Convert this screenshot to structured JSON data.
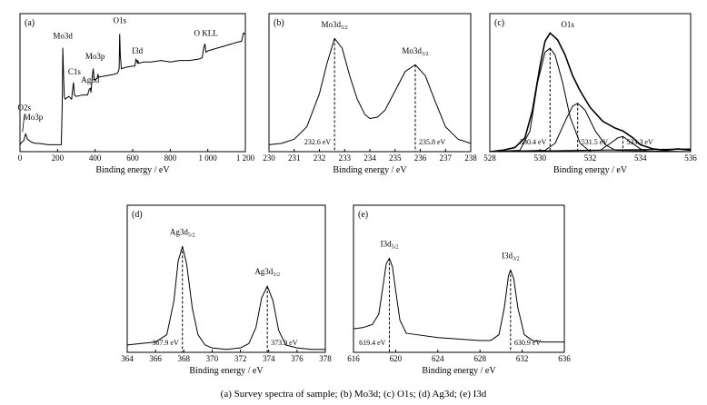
{
  "caption": {
    "text": "(a) Survey spectra of sample; (b) Mo3d; (c) O1s; (d) Ag3d; (e) I3d"
  },
  "chart_data": [
    {
      "id": "a",
      "tag": "(a)",
      "type": "line",
      "xlabel": "Binding energy / eV",
      "xlim": [
        0,
        1200
      ],
      "xticks": [
        0,
        200,
        400,
        600,
        800,
        1000,
        1200
      ],
      "xtick_labels": [
        "0",
        "200",
        "400",
        "600",
        "800",
        "1 000",
        "1 200"
      ],
      "ylim": [
        0,
        1
      ],
      "series": [
        {
          "points": [
            [
              0,
              0.05
            ],
            [
              10,
              0.07
            ],
            [
              20,
              0.08
            ],
            [
              30,
              0.13
            ],
            [
              40,
              0.09
            ],
            [
              60,
              0.07
            ],
            [
              80,
              0.06
            ],
            [
              100,
              0.06
            ],
            [
              150,
              0.05
            ],
            [
              200,
              0.05
            ],
            [
              220,
              0.05
            ],
            [
              225,
              0.35
            ],
            [
              228,
              0.75
            ],
            [
              232,
              0.55
            ],
            [
              236,
              0.4
            ],
            [
              240,
              0.38
            ],
            [
              260,
              0.4
            ],
            [
              275,
              0.38
            ],
            [
              280,
              0.45
            ],
            [
              285,
              0.5
            ],
            [
              290,
              0.41
            ],
            [
              300,
              0.4
            ],
            [
              330,
              0.41
            ],
            [
              360,
              0.41
            ],
            [
              368,
              0.45
            ],
            [
              374,
              0.46
            ],
            [
              378,
              0.43
            ],
            [
              385,
              0.55
            ],
            [
              390,
              0.6
            ],
            [
              396,
              0.52
            ],
            [
              410,
              0.53
            ],
            [
              415,
              0.56
            ],
            [
              420,
              0.54
            ],
            [
              460,
              0.55
            ],
            [
              500,
              0.56
            ],
            [
              520,
              0.57
            ],
            [
              528,
              0.6
            ],
            [
              531,
              0.85
            ],
            [
              534,
              0.7
            ],
            [
              540,
              0.6
            ],
            [
              560,
              0.61
            ],
            [
              600,
              0.62
            ],
            [
              612,
              0.62
            ],
            [
              617,
              0.67
            ],
            [
              621,
              0.66
            ],
            [
              626,
              0.64
            ],
            [
              628,
              0.66
            ],
            [
              632,
              0.64
            ],
            [
              660,
              0.65
            ],
            [
              700,
              0.65
            ],
            [
              750,
              0.66
            ],
            [
              800,
              0.65
            ],
            [
              850,
              0.66
            ],
            [
              900,
              0.66
            ],
            [
              950,
              0.67
            ],
            [
              970,
              0.68
            ],
            [
              978,
              0.75
            ],
            [
              985,
              0.78
            ],
            [
              990,
              0.72
            ],
            [
              1000,
              0.73
            ],
            [
              1050,
              0.75
            ],
            [
              1100,
              0.77
            ],
            [
              1150,
              0.79
            ],
            [
              1180,
              0.8
            ],
            [
              1190,
              0.86
            ],
            [
              1200,
              0.85
            ]
          ]
        }
      ],
      "peak_labels": [
        {
          "label": "O2s",
          "x": 23,
          "y": 0.3
        },
        {
          "label": "Mo3p",
          "x": 70,
          "y": 0.23
        },
        {
          "label": "Mo3d",
          "x": 228,
          "y": 0.82
        },
        {
          "label": "C1s",
          "x": 290,
          "y": 0.56
        },
        {
          "label": "Ag3d",
          "x": 374,
          "y": 0.5
        },
        {
          "label": "Mo3p",
          "x": 400,
          "y": 0.67
        },
        {
          "label": "O1s",
          "x": 531,
          "y": 0.93
        },
        {
          "label": "I3d",
          "x": 625,
          "y": 0.71
        },
        {
          "label": "O KLL",
          "x": 990,
          "y": 0.84
        }
      ]
    },
    {
      "id": "b",
      "tag": "(b)",
      "type": "line",
      "xlabel": "Binding energy / eV",
      "xlim": [
        230,
        238
      ],
      "xticks": [
        230,
        231,
        232,
        233,
        234,
        235,
        236,
        237,
        238
      ],
      "ylim": [
        0,
        1
      ],
      "series": [
        {
          "points": [
            [
              230,
              0.05
            ],
            [
              230.5,
              0.06
            ],
            [
              231,
              0.09
            ],
            [
              231.5,
              0.18
            ],
            [
              232,
              0.42
            ],
            [
              232.3,
              0.64
            ],
            [
              232.6,
              0.82
            ],
            [
              232.9,
              0.75
            ],
            [
              233.2,
              0.55
            ],
            [
              233.5,
              0.38
            ],
            [
              233.8,
              0.27
            ],
            [
              234,
              0.24
            ],
            [
              234.3,
              0.25
            ],
            [
              234.6,
              0.3
            ],
            [
              235,
              0.44
            ],
            [
              235.4,
              0.58
            ],
            [
              235.8,
              0.63
            ],
            [
              236.2,
              0.55
            ],
            [
              236.6,
              0.36
            ],
            [
              237,
              0.18
            ],
            [
              237.5,
              0.09
            ],
            [
              238,
              0.06
            ]
          ]
        }
      ],
      "peak_labels": [
        {
          "label": "Mo3d5/2",
          "x": 232.6,
          "y": 0.9,
          "marker_x": 232.6,
          "marker_y": 0.82,
          "value_label": "232.6 eV",
          "side": "left"
        },
        {
          "label": "Mo3d3/2",
          "x": 235.8,
          "y": 0.71,
          "marker_x": 235.8,
          "marker_y": 0.63,
          "value_label": "235.8 eV",
          "side": "right"
        }
      ]
    },
    {
      "id": "c",
      "tag": "(c)",
      "type": "line",
      "xlabel": "Binding energy / eV",
      "xlim": [
        528,
        536
      ],
      "xticks": [
        528,
        530,
        532,
        534,
        536
      ],
      "ylim": [
        0,
        1
      ],
      "series": [
        {
          "name": "",
          "points": [
            [
              528,
              0.0
            ],
            [
              528.5,
              0.01
            ],
            [
              529,
              0.03
            ],
            [
              529.4,
              0.1
            ],
            [
              529.7,
              0.3
            ],
            [
              530,
              0.62
            ],
            [
              530.2,
              0.8
            ],
            [
              530.4,
              0.86
            ],
            [
              530.7,
              0.81
            ],
            [
              531,
              0.7
            ],
            [
              531.3,
              0.55
            ],
            [
              531.6,
              0.44
            ],
            [
              532,
              0.32
            ],
            [
              532.5,
              0.22
            ],
            [
              533,
              0.17
            ],
            [
              533.3,
              0.15
            ],
            [
              533.7,
              0.1
            ],
            [
              534,
              0.05
            ],
            [
              534.5,
              0.02
            ],
            [
              535,
              0.01
            ],
            [
              535.5,
              0.02
            ],
            [
              536,
              0.01
            ]
          ]
        },
        {
          "name": "",
          "points": [
            [
              528,
              0.0
            ],
            [
              529.2,
              0.01
            ],
            [
              529.6,
              0.15
            ],
            [
              529.9,
              0.5
            ],
            [
              530.2,
              0.72
            ],
            [
              530.4,
              0.75
            ],
            [
              530.6,
              0.7
            ],
            [
              530.9,
              0.5
            ],
            [
              531.2,
              0.25
            ],
            [
              531.6,
              0.06
            ],
            [
              532,
              0.0
            ],
            [
              536,
              0.0
            ]
          ]
        },
        {
          "name": "",
          "points": [
            [
              528,
              0.0
            ],
            [
              530.2,
              0.01
            ],
            [
              530.6,
              0.06
            ],
            [
              531,
              0.22
            ],
            [
              531.3,
              0.33
            ],
            [
              531.5,
              0.35
            ],
            [
              531.8,
              0.3
            ],
            [
              532.2,
              0.15
            ],
            [
              532.6,
              0.05
            ],
            [
              533,
              0.01
            ],
            [
              536,
              0.0
            ]
          ]
        },
        {
          "name": "",
          "points": [
            [
              528,
              0.0
            ],
            [
              532.4,
              0.01
            ],
            [
              532.8,
              0.06
            ],
            [
              533.1,
              0.1
            ],
            [
              533.3,
              0.11
            ],
            [
              533.6,
              0.07
            ],
            [
              534,
              0.02
            ],
            [
              534.4,
              0.0
            ],
            [
              536,
              0.0
            ]
          ]
        }
      ],
      "peak_labels": [
        {
          "label": "O1s",
          "x": 531.1,
          "y": 0.9
        },
        {
          "marker_x": 530.4,
          "marker_y": 0.75,
          "value_label": "530.4 eV",
          "side": "left"
        },
        {
          "marker_x": 531.5,
          "marker_y": 0.35,
          "value_label": "531.5 eV",
          "side": "right"
        },
        {
          "marker_x": 533.3,
          "marker_y": 0.11,
          "value_label": "533.3 eV",
          "side": "right"
        }
      ]
    },
    {
      "id": "d",
      "tag": "(d)",
      "type": "line",
      "xlabel": "Binding energy / eV",
      "xlim": [
        364,
        378
      ],
      "xticks": [
        364,
        366,
        368,
        370,
        372,
        374,
        376,
        378
      ],
      "ylim": [
        0,
        1
      ],
      "series": [
        {
          "points": [
            [
              364,
              0.05
            ],
            [
              365,
              0.06
            ],
            [
              366,
              0.07
            ],
            [
              366.8,
              0.12
            ],
            [
              367.3,
              0.35
            ],
            [
              367.6,
              0.62
            ],
            [
              367.9,
              0.72
            ],
            [
              368.2,
              0.6
            ],
            [
              368.6,
              0.3
            ],
            [
              369,
              0.12
            ],
            [
              369.5,
              0.05
            ],
            [
              370,
              0.03
            ],
            [
              371,
              0.02
            ],
            [
              372,
              0.03
            ],
            [
              372.6,
              0.06
            ],
            [
              373.1,
              0.17
            ],
            [
              373.5,
              0.37
            ],
            [
              373.9,
              0.45
            ],
            [
              374.3,
              0.35
            ],
            [
              374.7,
              0.15
            ],
            [
              375.2,
              0.05
            ],
            [
              376,
              0.03
            ],
            [
              377,
              0.02
            ],
            [
              378,
              0.02
            ]
          ]
        }
      ],
      "peak_labels": [
        {
          "label": "Ag3d5/2",
          "x": 367.9,
          "y": 0.8,
          "marker_x": 367.9,
          "marker_y": 0.72,
          "value_label": "367.9 eV",
          "side": "left"
        },
        {
          "label": "Ag3d3/2",
          "x": 373.9,
          "y": 0.53,
          "marker_x": 373.9,
          "marker_y": 0.45,
          "value_label": "373.9 eV",
          "side": "right"
        }
      ]
    },
    {
      "id": "e",
      "tag": "(e)",
      "type": "line",
      "xlabel": "Binding energy / eV",
      "xlim": [
        616,
        636
      ],
      "xticks": [
        616,
        620,
        624,
        628,
        632,
        636
      ],
      "ylim": [
        0,
        1
      ],
      "series": [
        {
          "points": [
            [
              616,
              0.16
            ],
            [
              617,
              0.17
            ],
            [
              617.8,
              0.19
            ],
            [
              618.4,
              0.26
            ],
            [
              618.8,
              0.45
            ],
            [
              619.1,
              0.6
            ],
            [
              619.4,
              0.64
            ],
            [
              619.7,
              0.58
            ],
            [
              620,
              0.42
            ],
            [
              620.4,
              0.22
            ],
            [
              621,
              0.13
            ],
            [
              622,
              0.12
            ],
            [
              624,
              0.1
            ],
            [
              626,
              0.09
            ],
            [
              628,
              0.08
            ],
            [
              629,
              0.08
            ],
            [
              629.8,
              0.12
            ],
            [
              630.3,
              0.3
            ],
            [
              630.7,
              0.52
            ],
            [
              630.9,
              0.56
            ],
            [
              631.2,
              0.5
            ],
            [
              631.6,
              0.3
            ],
            [
              632.2,
              0.12
            ],
            [
              633,
              0.08
            ],
            [
              634,
              0.07
            ],
            [
              635,
              0.07
            ],
            [
              636,
              0.07
            ]
          ]
        }
      ],
      "peak_labels": [
        {
          "label": "I3d5/2",
          "x": 619.4,
          "y": 0.72,
          "marker_x": 619.4,
          "marker_y": 0.64,
          "value_label": "619.4 eV",
          "side": "left"
        },
        {
          "label": "I3d3/2",
          "x": 630.9,
          "y": 0.64,
          "marker_x": 630.9,
          "marker_y": 0.56,
          "value_label": "630.9 eV",
          "side": "right"
        }
      ]
    }
  ]
}
